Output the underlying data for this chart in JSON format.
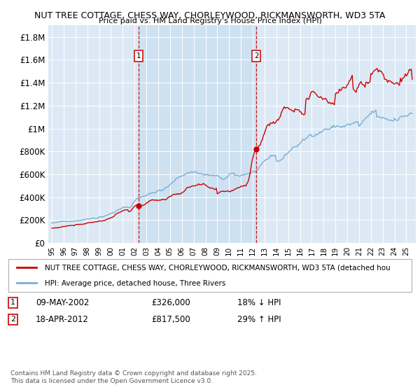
{
  "title1": "NUT TREE COTTAGE, CHESS WAY, CHORLEYWOOD, RICKMANSWORTH, WD3 5TA",
  "title2": "Price paid vs. HM Land Registry's House Price Index (HPI)",
  "bg_color": "#dce9f5",
  "red_color": "#cc0000",
  "blue_color": "#7aadd4",
  "shade_color": "#c8dff0",
  "ylim": [
    0,
    1900000
  ],
  "yticks": [
    0,
    200000,
    400000,
    600000,
    800000,
    1000000,
    1200000,
    1400000,
    1600000,
    1800000
  ],
  "ytick_labels": [
    "£0",
    "£200K",
    "£400K",
    "£600K",
    "£800K",
    "£1M",
    "£1.2M",
    "£1.4M",
    "£1.6M",
    "£1.8M"
  ],
  "sale1_year": 2002.35,
  "sale1_price": 326000,
  "sale2_year": 2012.3,
  "sale2_price": 817500,
  "sale1_date": "09-MAY-2002",
  "sale1_pct": "18% ↓ HPI",
  "sale2_date": "18-APR-2012",
  "sale2_pct": "29% ↑ HPI",
  "legend_line1": "NUT TREE COTTAGE, CHESS WAY, CHORLEYWOOD, RICKMANSWORTH, WD3 5TA (detached hou",
  "legend_line2": "HPI: Average price, detached house, Three Rivers",
  "footnote": "Contains HM Land Registry data © Crown copyright and database right 2025.\nThis data is licensed under the Open Government Licence v3.0."
}
